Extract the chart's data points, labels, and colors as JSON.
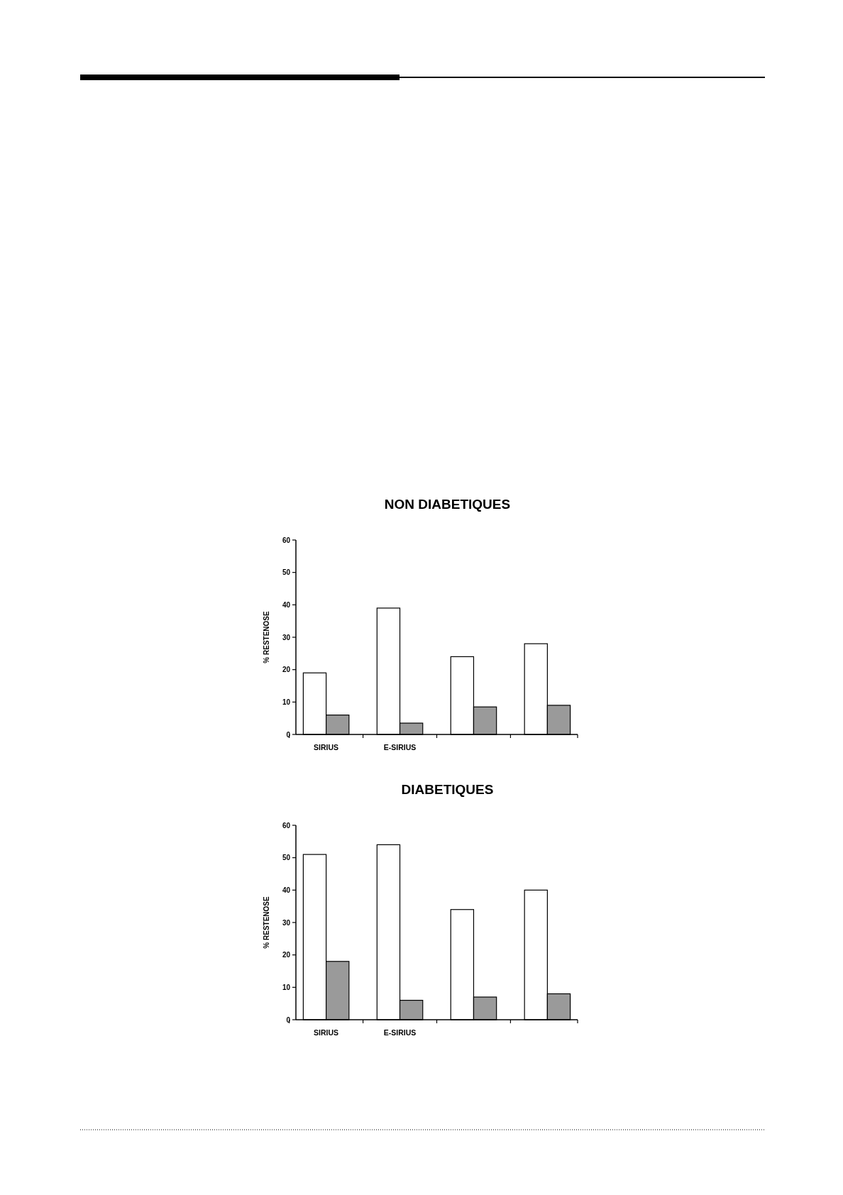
{
  "chart_data": [
    {
      "type": "bar",
      "title": "NON DIABETIQUES",
      "ylabel": "% RESTENOSE",
      "categories": [
        "SIRIUS",
        "E-SIRIUS",
        null,
        null
      ],
      "ylim": [
        0,
        60
      ],
      "yticks": [
        0,
        10,
        20,
        30,
        40,
        50,
        60
      ],
      "grid": false,
      "series": [
        {
          "color": "#ffffff",
          "values": [
            19,
            39,
            24,
            28
          ]
        },
        {
          "color": "#9a9a9a",
          "values": [
            6,
            3.5,
            8.5,
            9
          ]
        }
      ]
    },
    {
      "type": "bar",
      "title": "DIABETIQUES",
      "ylabel": "% RESTENOSE",
      "categories": [
        "SIRIUS",
        "E-SIRIUS",
        null,
        null
      ],
      "ylim": [
        0,
        60
      ],
      "yticks": [
        0,
        10,
        20,
        30,
        40,
        50,
        60
      ],
      "grid": false,
      "series": [
        {
          "color": "#ffffff",
          "values": [
            51,
            54,
            34,
            40
          ]
        },
        {
          "color": "#9a9a9a",
          "values": [
            18,
            6,
            7,
            8
          ]
        }
      ]
    }
  ]
}
